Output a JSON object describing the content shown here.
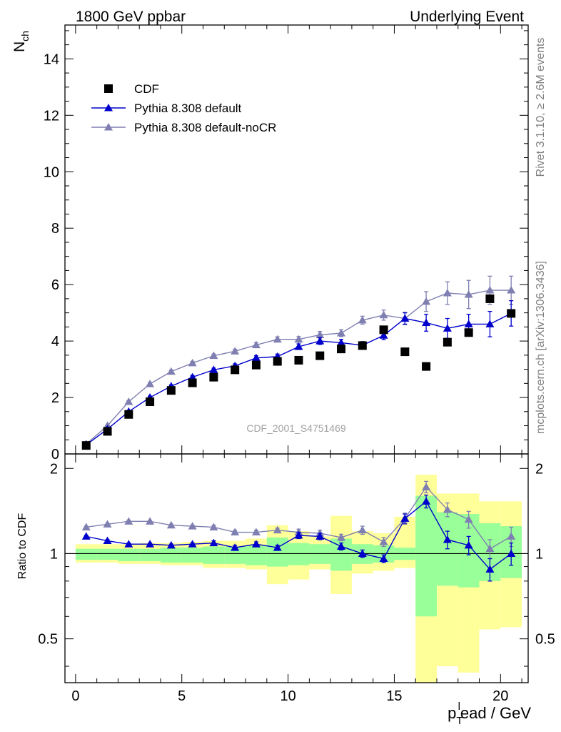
{
  "header": {
    "left": "1800 GeV ppbar",
    "right": "Underlying Event"
  },
  "side_labels": {
    "rivet": "Rivet 3.1.10, ≥ 2.6M events",
    "mcplots": "mcplots.cern.ch [arXiv:1306.3436]"
  },
  "analysis_id": "CDF_2001_S4751469",
  "colors": {
    "cdf": "#000000",
    "default": "#0000cc",
    "nocr": "#7f7fb2",
    "band_green": "#99ff99",
    "band_yellow": "#ffff99"
  },
  "chart_data": [
    {
      "type": "line",
      "panel": "main",
      "ylabel_main": "N",
      "ylabel_sub": "ch",
      "ylim": [
        0,
        15.2
      ],
      "xlim": [
        -0.5,
        21.3
      ],
      "yticks": [
        0,
        2,
        4,
        6,
        8,
        10,
        12,
        14
      ],
      "legend_position": "top-left",
      "x": [
        0.5,
        1.5,
        2.5,
        3.5,
        4.5,
        5.5,
        6.5,
        7.5,
        8.5,
        9.5,
        10.5,
        11.5,
        12.5,
        13.5,
        14.5,
        15.5,
        16.5,
        17.5,
        18.5,
        19.5,
        20.5
      ],
      "series": [
        {
          "name": "CDF",
          "marker": "square",
          "values": [
            0.3,
            0.8,
            1.4,
            1.85,
            2.25,
            2.52,
            2.72,
            2.98,
            3.15,
            3.28,
            3.32,
            3.48,
            3.72,
            3.84,
            4.4,
            3.62,
            3.1,
            3.96,
            4.3,
            5.5,
            4.98
          ]
        },
        {
          "name": "Pythia 8.308 default",
          "marker": "triangle",
          "values": [
            0.32,
            0.88,
            1.5,
            2.0,
            2.4,
            2.72,
            2.98,
            3.12,
            3.4,
            3.45,
            3.8,
            4.0,
            3.94,
            3.85,
            4.2,
            4.8,
            4.65,
            4.45,
            4.6,
            4.6,
            4.98
          ],
          "errors": [
            0.02,
            0.03,
            0.04,
            0.05,
            0.05,
            0.06,
            0.06,
            0.07,
            0.08,
            0.09,
            0.1,
            0.12,
            0.12,
            0.13,
            0.15,
            0.2,
            0.3,
            0.35,
            0.35,
            0.45,
            0.45
          ]
        },
        {
          "name": "Pythia 8.308 default-noCR",
          "marker": "triangle",
          "values": [
            0.35,
            1.0,
            1.85,
            2.48,
            2.92,
            3.22,
            3.48,
            3.64,
            3.86,
            4.06,
            4.06,
            4.22,
            4.28,
            4.74,
            4.92,
            4.8,
            5.4,
            5.7,
            5.65,
            5.8,
            5.8
          ],
          "errors": [
            0.02,
            0.03,
            0.04,
            0.05,
            0.05,
            0.06,
            0.06,
            0.07,
            0.08,
            0.09,
            0.1,
            0.12,
            0.12,
            0.14,
            0.18,
            0.22,
            0.35,
            0.4,
            0.5,
            0.5,
            0.5
          ]
        }
      ]
    },
    {
      "type": "line",
      "panel": "ratio",
      "ylabel": "Ratio to CDF",
      "xlabel_main": "p",
      "xlabel_sub": "T",
      "xlabel_sup": "l",
      "xlabel_rest": "ead / GeV",
      "ylim": [
        0.35,
        2.25
      ],
      "xlim": [
        -0.5,
        21.3
      ],
      "xticks": [
        0,
        5,
        10,
        15,
        20
      ],
      "yticks": [
        0.5,
        1,
        2
      ],
      "x": [
        0.5,
        1.5,
        2.5,
        3.5,
        4.5,
        5.5,
        6.5,
        7.5,
        8.5,
        9.5,
        10.5,
        11.5,
        12.5,
        13.5,
        14.5,
        15.5,
        16.5,
        17.5,
        18.5,
        19.5,
        20.5
      ],
      "bins": [
        0,
        1,
        2,
        3,
        4,
        5,
        6,
        7,
        8,
        9,
        10,
        11,
        12,
        13,
        14,
        15,
        16,
        17,
        18,
        19,
        20,
        21
      ],
      "band_green": [
        [
          0.95,
          1.04
        ],
        [
          0.95,
          1.04
        ],
        [
          0.94,
          1.04
        ],
        [
          0.94,
          1.04
        ],
        [
          0.93,
          1.05
        ],
        [
          0.93,
          1.05
        ],
        [
          0.92,
          1.06
        ],
        [
          0.92,
          1.06
        ],
        [
          0.91,
          1.07
        ],
        [
          0.9,
          1.14
        ],
        [
          0.91,
          1.09
        ],
        [
          0.92,
          1.08
        ],
        [
          0.87,
          1.13
        ],
        [
          0.92,
          1.08
        ],
        [
          0.93,
          1.07
        ],
        [
          0.95,
          1.05
        ],
        [
          0.6,
          1.6
        ],
        [
          0.77,
          1.4
        ],
        [
          0.76,
          1.38
        ],
        [
          0.8,
          1.28
        ],
        [
          0.82,
          1.25
        ]
      ],
      "band_yellow": [
        [
          0.93,
          1.08
        ],
        [
          0.93,
          1.08
        ],
        [
          0.92,
          1.08
        ],
        [
          0.92,
          1.09
        ],
        [
          0.91,
          1.09
        ],
        [
          0.91,
          1.1
        ],
        [
          0.89,
          1.11
        ],
        [
          0.89,
          1.11
        ],
        [
          0.88,
          1.13
        ],
        [
          0.78,
          1.26
        ],
        [
          0.81,
          1.2
        ],
        [
          0.88,
          1.15
        ],
        [
          0.72,
          1.36
        ],
        [
          0.85,
          1.2
        ],
        [
          0.87,
          1.18
        ],
        [
          0.89,
          1.35
        ],
        [
          0.3,
          1.9
        ],
        [
          0.4,
          1.63
        ],
        [
          0.38,
          1.63
        ],
        [
          0.54,
          1.53
        ],
        [
          0.55,
          1.53
        ]
      ],
      "series": [
        {
          "name": "Pythia 8.308 default",
          "values": [
            1.15,
            1.11,
            1.08,
            1.08,
            1.07,
            1.08,
            1.09,
            1.05,
            1.08,
            1.05,
            1.16,
            1.15,
            1.06,
            1.0,
            0.96,
            1.33,
            1.53,
            1.12,
            1.07,
            0.88,
            1.0
          ],
          "errors": [
            0.01,
            0.01,
            0.01,
            0.01,
            0.01,
            0.01,
            0.02,
            0.02,
            0.02,
            0.02,
            0.03,
            0.03,
            0.03,
            0.03,
            0.03,
            0.05,
            0.08,
            0.08,
            0.08,
            0.08,
            0.09
          ]
        },
        {
          "name": "Pythia 8.308 default-noCR",
          "values": [
            1.24,
            1.27,
            1.3,
            1.3,
            1.26,
            1.25,
            1.24,
            1.19,
            1.19,
            1.21,
            1.19,
            1.18,
            1.14,
            1.21,
            1.1,
            1.33,
            1.72,
            1.43,
            1.32,
            1.04,
            1.15
          ],
          "errors": [
            0.01,
            0.01,
            0.01,
            0.01,
            0.01,
            0.01,
            0.02,
            0.02,
            0.02,
            0.02,
            0.03,
            0.03,
            0.03,
            0.04,
            0.04,
            0.06,
            0.08,
            0.08,
            0.09,
            0.08,
            0.09
          ]
        }
      ]
    }
  ]
}
